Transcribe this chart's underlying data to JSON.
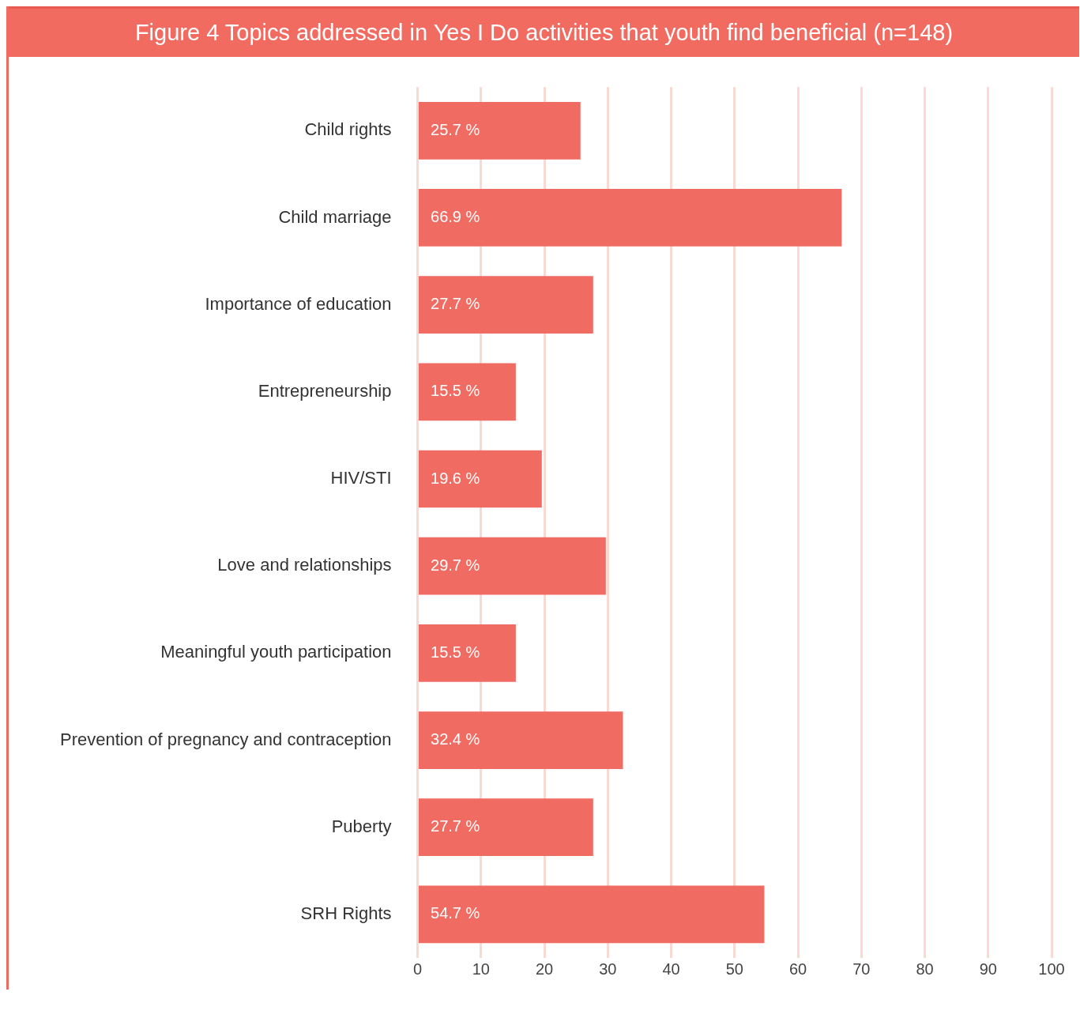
{
  "chart_data": {
    "type": "bar",
    "orientation": "horizontal",
    "title": "Figure 4  Topics addressed in Yes I Do activities that youth find beneficial (n=148)",
    "categories": [
      "Child rights",
      "Child marriage",
      "Importance of education",
      "Entrepreneurship",
      "HIV/STI",
      "Love and relationships",
      "Meaningful youth participation",
      "Prevention of pregnancy and contraception",
      "Puberty",
      "SRH Rights"
    ],
    "values": [
      25.7,
      66.9,
      27.7,
      15.5,
      19.6,
      29.7,
      15.5,
      32.4,
      27.7,
      54.7
    ],
    "value_labels": [
      "25.7 %",
      "66.9 %",
      "27.7 %",
      "15.5 %",
      "19.6 %",
      "29.7 %",
      "15.5 %",
      "32.4 %",
      "27.7 %",
      "54.7 %"
    ],
    "color": "#f06b62",
    "xlim": [
      0,
      100
    ],
    "xticks": [
      0,
      10,
      20,
      30,
      40,
      50,
      60,
      70,
      80,
      90,
      100
    ],
    "grid": "x",
    "legend": false
  }
}
